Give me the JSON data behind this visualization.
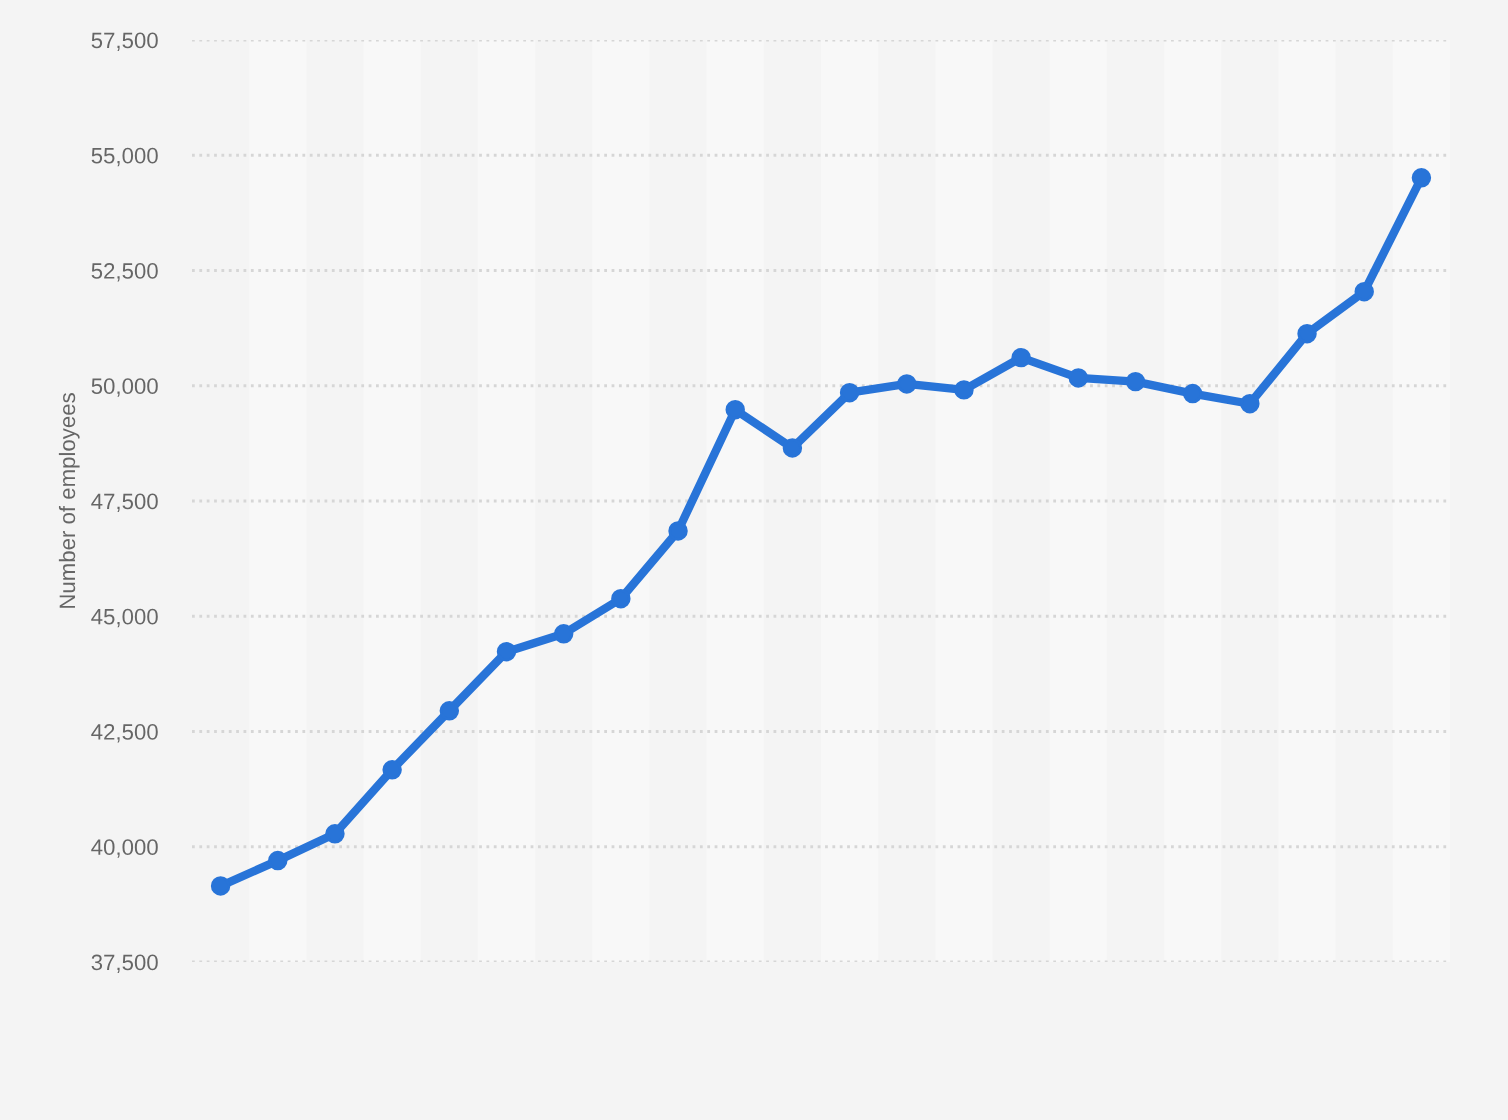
{
  "chart_data": {
    "type": "line",
    "ylabel": "Number of employees",
    "categories": [
      null,
      null,
      null,
      null,
      null,
      null,
      null,
      null,
      null,
      null,
      null,
      null,
      null,
      null,
      null,
      null,
      null,
      null,
      null,
      null,
      null,
      null
    ],
    "series": [
      {
        "color": "#2874d8",
        "values": [
          39150,
          39700,
          40280,
          41670,
          42950,
          44230,
          44620,
          45380,
          46850,
          49480,
          48650,
          49850,
          50040,
          49910,
          50610,
          50170,
          50090,
          49830,
          49610,
          51130,
          52040,
          54510
        ]
      }
    ],
    "ylim": [
      37500,
      57500
    ],
    "yticks": [
      {
        "value": 37500,
        "label": "37,500"
      },
      {
        "value": 40000,
        "label": "40,000"
      },
      {
        "value": 42500,
        "label": "42,500"
      },
      {
        "value": 45000,
        "label": "45,000"
      },
      {
        "value": 47500,
        "label": "47,500"
      },
      {
        "value": 50000,
        "label": "50,000"
      },
      {
        "value": 52500,
        "label": "52,500"
      },
      {
        "value": 55000,
        "label": "55,000"
      },
      {
        "value": 57500,
        "label": "57,500"
      }
    ],
    "grid": "y",
    "marker": "circle",
    "line_style": "solid",
    "tick_labels": "y",
    "legend": false
  }
}
